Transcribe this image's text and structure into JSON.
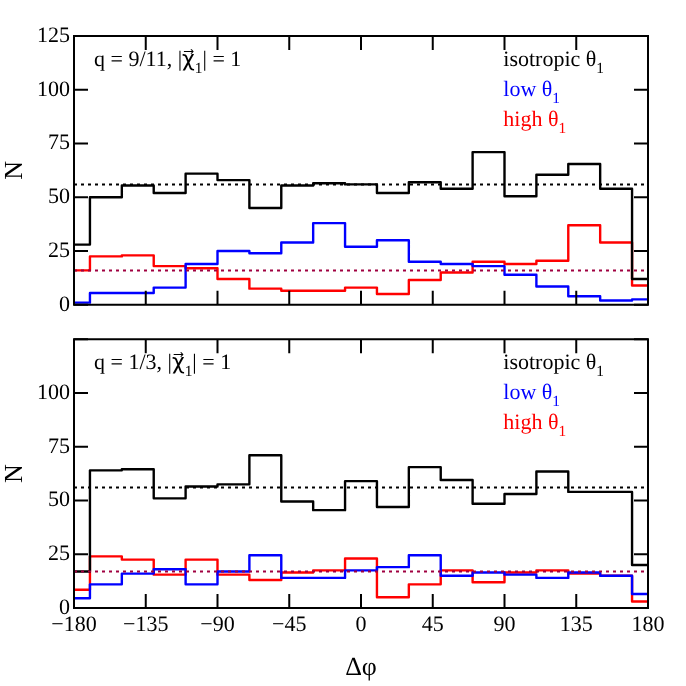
{
  "chart_data": [
    {
      "type": "step",
      "annotations": [
        "q = 9/11, |χ⃗$_{1}$| = 1"
      ],
      "ylabel": "N",
      "x": [
        -180,
        -170,
        -150,
        -130,
        -110,
        -90,
        -70,
        -50,
        -30,
        -10,
        10,
        30,
        50,
        70,
        90,
        110,
        130,
        150,
        170,
        180
      ],
      "xlim": [
        -180,
        180
      ],
      "xticks": [
        -180,
        -135,
        -90,
        -45,
        0,
        45,
        90,
        135,
        180
      ],
      "ylim": [
        0,
        125
      ],
      "yticks": [
        0,
        25,
        50,
        75,
        100,
        125
      ],
      "tick_labels": "y",
      "grid": false,
      "legend": "top right",
      "series": [
        {
          "name": "isotropic θ$_{1}$",
          "color": "#000000",
          "values": [
            28,
            50,
            55.5,
            52,
            61,
            58,
            45,
            55.5,
            56.5,
            56,
            52,
            57,
            54,
            71,
            50.5,
            60.5,
            65.5,
            54,
            12,
            12
          ]
        },
        {
          "name": "low θ$_{1}$",
          "color": "#0000ff",
          "values": [
            1,
            5.5,
            5.5,
            8,
            19,
            25,
            24,
            29,
            38,
            27,
            30,
            20,
            19,
            18,
            14,
            8.5,
            4,
            2,
            2.5,
            2.5
          ]
        },
        {
          "name": "high θ$_{1}$",
          "color": "#ff0000",
          "values": [
            16,
            22.5,
            23,
            18,
            17,
            12,
            7.5,
            6.5,
            6.5,
            8,
            5,
            11.5,
            15,
            20,
            19,
            20.5,
            37,
            29,
            9,
            9
          ]
        }
      ],
      "ref_lines": [
        {
          "axis": "y",
          "value": 56,
          "color": "#000000",
          "line_style": "dotted"
        },
        {
          "axis": "y",
          "value": 16,
          "color": "#a00040",
          "line_style": "dotted"
        }
      ]
    },
    {
      "type": "step",
      "annotations": [
        "q = 1/3, |χ⃗$_{1}$| = 1"
      ],
      "xlabel": "Δφ",
      "ylabel": "N",
      "x": [
        -180,
        -170,
        -150,
        -130,
        -110,
        -90,
        -70,
        -50,
        -30,
        -10,
        10,
        30,
        50,
        70,
        90,
        110,
        130,
        150,
        170,
        180
      ],
      "xlim": [
        -180,
        180
      ],
      "xticks": [
        -180,
        -135,
        -90,
        -45,
        0,
        45,
        90,
        135,
        180
      ],
      "ylim": [
        0,
        125
      ],
      "yticks": [
        0,
        25,
        50,
        75,
        100,
        {
          "value": 125,
          "label": null
        }
      ],
      "grid": false,
      "legend": "top right",
      "series": [
        {
          "name": "isotropic θ$_{1}$",
          "color": "#000000",
          "values": [
            17,
            64,
            64.5,
            51,
            56.5,
            57.5,
            71,
            49.5,
            45.5,
            59,
            47,
            65.5,
            59.5,
            48.5,
            53,
            63.5,
            54,
            54,
            20,
            20
          ]
        },
        {
          "name": "low θ$_{1}$",
          "color": "#0000ff",
          "values": [
            4.5,
            11,
            16,
            18,
            11,
            17,
            24.5,
            14,
            14,
            17.5,
            19,
            24.5,
            15,
            16.5,
            15.5,
            14,
            16.5,
            15,
            6.5,
            6.5
          ]
        },
        {
          "name": "high θ$_{1}$",
          "color": "#ff0000",
          "values": [
            8.5,
            24,
            22.5,
            15.5,
            22.5,
            15.5,
            13,
            16.5,
            17.5,
            23,
            5,
            11,
            17.5,
            12,
            16.5,
            17.5,
            16,
            15,
            3,
            3
          ]
        }
      ],
      "ref_lines": [
        {
          "axis": "y",
          "value": 56,
          "color": "#000000",
          "line_style": "dotted"
        },
        {
          "axis": "y",
          "value": 17,
          "color": "#a00040",
          "line_style": "dotted"
        }
      ]
    }
  ]
}
